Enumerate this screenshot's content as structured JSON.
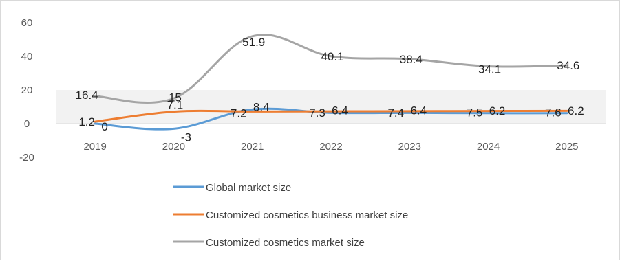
{
  "chart_data": {
    "type": "line",
    "categories": [
      "2019",
      "2020",
      "2021",
      "2022",
      "2023",
      "2024",
      "2025"
    ],
    "ylim": [
      -20,
      60
    ],
    "yticks": [
      "-20",
      "0",
      "20",
      "40",
      "60"
    ],
    "grid": false,
    "legend_position": "bottom",
    "series": [
      {
        "name": "Global market size",
        "color": "#5b9bd5",
        "values": [
          0,
          -3,
          8.4,
          6.4,
          6.4,
          6.2,
          6.2
        ],
        "labels": [
          "0",
          "-3",
          "8.4",
          "6.4",
          "6.4",
          "6.2",
          "6.2"
        ]
      },
      {
        "name": "Customized cosmetics business market size",
        "color": "#ed7d31",
        "values": [
          1.2,
          7.1,
          7.2,
          7.3,
          7.4,
          7.5,
          7.6
        ],
        "labels": [
          "1.2",
          "7.1",
          "7.2",
          "7.3",
          "7.4",
          "7.5",
          "7.6"
        ]
      },
      {
        "name": "Customized cosmetics market size",
        "color": "#a5a5a5",
        "values": [
          16.4,
          15,
          51.9,
          40.1,
          38.4,
          34.1,
          34.6
        ],
        "labels": [
          "16.4",
          "15",
          "51.9",
          "40.1",
          "38.4",
          "34.1",
          "34.6"
        ]
      }
    ]
  }
}
